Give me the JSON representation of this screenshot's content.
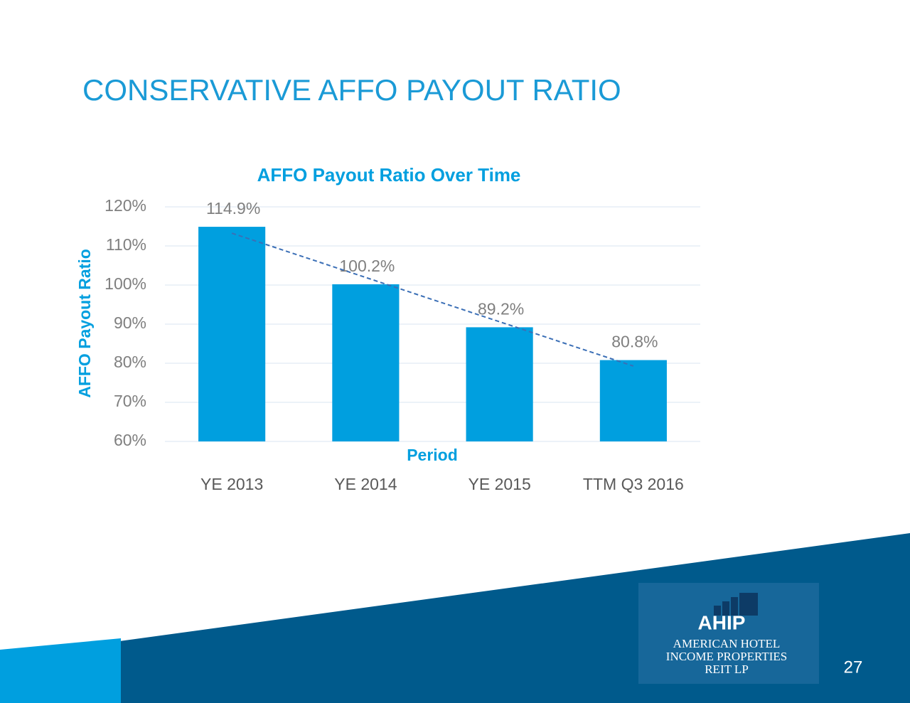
{
  "slide": {
    "title": "CONSERVATIVE AFFO PAYOUT RATIO",
    "page_number": "27",
    "logo": {
      "mark": "AHIP",
      "lines": [
        "AMERICAN HOTEL",
        "INCOME PROPERTIES",
        "REIT LP"
      ]
    }
  },
  "chart_data": {
    "type": "bar",
    "title": "AFFO Payout Ratio Over Time",
    "x_label": "Period",
    "y_label": "AFFO Payout Ratio",
    "categories": [
      "YE 2013",
      "YE 2014",
      "YE 2015",
      "TTM Q3 2016"
    ],
    "values": [
      114.9,
      100.2,
      89.2,
      80.8
    ],
    "value_labels": [
      "114.9%",
      "100.2%",
      "89.2%",
      "80.8%"
    ],
    "color": "#009fdf",
    "trendline": true,
    "grid": true,
    "ylim": [
      60,
      120
    ],
    "yticks": [
      {
        "value": 60,
        "label": "60%"
      },
      {
        "value": 70,
        "label": "70%"
      },
      {
        "value": 80,
        "label": "80%"
      },
      {
        "value": 90,
        "label": "90%"
      },
      {
        "value": 100,
        "label": "100%"
      },
      {
        "value": 110,
        "label": "110%"
      },
      {
        "value": 120,
        "label": "120%"
      }
    ]
  }
}
